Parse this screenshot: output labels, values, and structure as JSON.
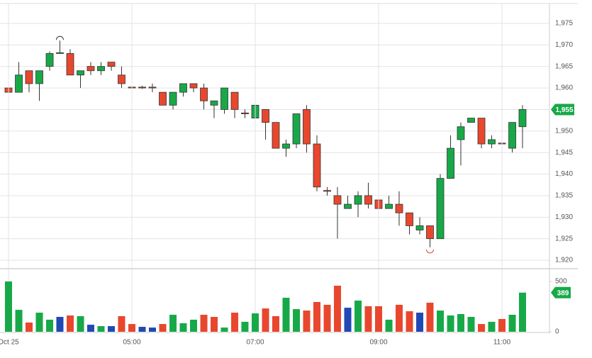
{
  "chart_data": [
    {
      "type": "candlestick",
      "x": [
        3,
        3.167,
        3.333,
        3.5,
        3.667,
        3.833,
        4,
        4.167,
        4.333,
        4.5,
        4.667,
        4.833,
        5,
        5.167,
        5.333,
        5.5,
        5.667,
        5.833,
        6,
        6.167,
        6.333,
        6.5,
        6.667,
        6.833,
        7,
        7.167,
        7.333,
        7.5,
        7.667,
        7.833,
        8,
        8.167,
        8.333,
        8.5,
        8.667,
        8.833,
        9,
        9.167,
        9.333,
        9.5,
        9.667,
        9.833,
        10,
        10.167,
        10.333,
        10.5,
        10.667,
        10.833,
        11,
        11.167,
        11.333
      ],
      "open": [
        1960,
        1959,
        1964,
        1961,
        1965,
        1968,
        1968,
        1963,
        1965,
        1964,
        1966,
        1963,
        1960.2,
        1960.2,
        1960.2,
        1959,
        1956,
        1959,
        1961,
        1960,
        1956,
        1955,
        1959,
        1954.2,
        1953,
        1955,
        1952,
        1946,
        1947,
        1955,
        1947,
        1936.2,
        1935,
        1932,
        1933,
        1935,
        1934,
        1932,
        1933,
        1931,
        1927,
        1928,
        1925,
        1939,
        1948,
        1952,
        1953,
        1947,
        1947.2,
        1946,
        1951
      ],
      "high": [
        1965,
        1966,
        1964,
        1964,
        1968.5,
        1971,
        1969,
        1964,
        1966,
        1966,
        1966,
        1965,
        1960.5,
        1960.5,
        1961,
        1959,
        1959,
        1961,
        1961,
        1961,
        1957,
        1960,
        1959,
        1955,
        1956,
        1955,
        1952,
        1948,
        1954,
        1956,
        1949,
        1937,
        1937,
        1935,
        1936,
        1938,
        1936,
        1935,
        1936,
        1931,
        1930,
        1928,
        1940,
        1949,
        1952,
        1953,
        1953,
        1949,
        1947.5,
        1952,
        1956
      ],
      "low": [
        1953,
        1959,
        1959,
        1957,
        1964,
        1968,
        1963,
        1960,
        1963,
        1963,
        1964,
        1960,
        1959.8,
        1959.8,
        1959,
        1956,
        1955,
        1958,
        1959,
        1955,
        1953,
        1954,
        1953,
        1953,
        1953,
        1948,
        1946,
        1944,
        1946,
        1945,
        1936,
        1935,
        1925,
        1932,
        1930,
        1932,
        1930,
        1932,
        1928,
        1926,
        1926,
        1923,
        1925,
        1939,
        1942,
        1952,
        1946,
        1946,
        1945,
        1945,
        1946
      ],
      "close": [
        1959,
        1963,
        1961,
        1964,
        1968,
        1968.2,
        1963,
        1964,
        1964,
        1965,
        1965,
        1961,
        1960,
        1960,
        1960,
        1956,
        1959,
        1961,
        1960,
        1957,
        1957,
        1960,
        1955,
        1954,
        1956,
        1952,
        1946,
        1947,
        1954,
        1947,
        1937,
        1936,
        1933,
        1933,
        1935,
        1933,
        1932,
        1933,
        1931,
        1928,
        1928,
        1925,
        1939,
        1946,
        1951,
        1953,
        1947,
        1948,
        1947,
        1952,
        1955
      ],
      "up_color": "#17a948",
      "down_color": "#e8472e",
      "xlim": [
        2.862,
        11.77
      ],
      "ylim": [
        1918.2,
        1979.6
      ],
      "yticks": [
        {
          "value": 1920,
          "label": "1,920"
        },
        {
          "value": 1925,
          "label": "1,925"
        },
        {
          "value": 1930,
          "label": "1,930"
        },
        {
          "value": 1935,
          "label": "1,935"
        },
        {
          "value": 1940,
          "label": "1,940"
        },
        {
          "value": 1945,
          "label": "1,945"
        },
        {
          "value": 1950,
          "label": "1,950"
        },
        {
          "value": 1955,
          "label": "1,955"
        },
        {
          "value": 1960,
          "label": "1,960"
        },
        {
          "value": 1965,
          "label": "1,965"
        },
        {
          "value": 1970,
          "label": "1,970"
        },
        {
          "value": 1975,
          "label": "1,975"
        }
      ],
      "last": {
        "value": 1955,
        "label": "1,955"
      },
      "grid": true
    },
    {
      "type": "bar",
      "x": [
        3,
        3.167,
        3.333,
        3.5,
        3.667,
        3.833,
        4,
        4.167,
        4.333,
        4.5,
        4.667,
        4.833,
        5,
        5.167,
        5.333,
        5.5,
        5.667,
        5.833,
        6,
        6.167,
        6.333,
        6.5,
        6.667,
        6.833,
        7,
        7.167,
        7.333,
        7.5,
        7.667,
        7.833,
        8,
        8.167,
        8.333,
        8.5,
        8.667,
        8.833,
        9,
        9.167,
        9.333,
        9.5,
        9.667,
        9.833,
        10,
        10.167,
        10.333,
        10.5,
        10.667,
        10.833,
        11,
        11.167,
        11.333
      ],
      "values": [
        500,
        218,
        92,
        190,
        120,
        148,
        162,
        155,
        70,
        56,
        56,
        155,
        77,
        49,
        42,
        77,
        169,
        85,
        120,
        169,
        148,
        42,
        190,
        99,
        183,
        232,
        155,
        338,
        225,
        211,
        296,
        268,
        458,
        239,
        310,
        254,
        254,
        120,
        268,
        204,
        190,
        289,
        211,
        162,
        176,
        148,
        77,
        99,
        127,
        169,
        389
      ],
      "colors": [
        "#17a948",
        "#17a948",
        "#e8472e",
        "#17a948",
        "#17a948",
        "#2149b5",
        "#e8472e",
        "#17a948",
        "#2149b5",
        "#17a948",
        "#2149b5",
        "#e8472e",
        "#e8472e",
        "#2149b5",
        "#2149b5",
        "#e8472e",
        "#17a948",
        "#17a948",
        "#17a948",
        "#e8472e",
        "#e8472e",
        "#17a948",
        "#e8472e",
        "#17a948",
        "#17a948",
        "#e8472e",
        "#e8472e",
        "#17a948",
        "#17a948",
        "#e8472e",
        "#e8472e",
        "#e8472e",
        "#e8472e",
        "#2149b5",
        "#17a948",
        "#e8472e",
        "#e8472e",
        "#17a948",
        "#e8472e",
        "#e8472e",
        "#2149b5",
        "#e8472e",
        "#17a948",
        "#17a948",
        "#17a948",
        "#17a948",
        "#e8472e",
        "#17a948",
        "#e8472e",
        "#17a948",
        "#17a948"
      ],
      "xlim": [
        2.862,
        11.77
      ],
      "ylim": [
        0,
        620
      ],
      "yticks": [
        0,
        500
      ],
      "xticks": [
        {
          "value": 3,
          "label": "Oct 25"
        },
        {
          "value": 5,
          "label": "05:00"
        },
        {
          "value": 7,
          "label": "07:00"
        },
        {
          "value": 9,
          "label": "09:00"
        },
        {
          "value": 11,
          "label": "11:00"
        }
      ],
      "last": 389,
      "grid": true
    }
  ]
}
